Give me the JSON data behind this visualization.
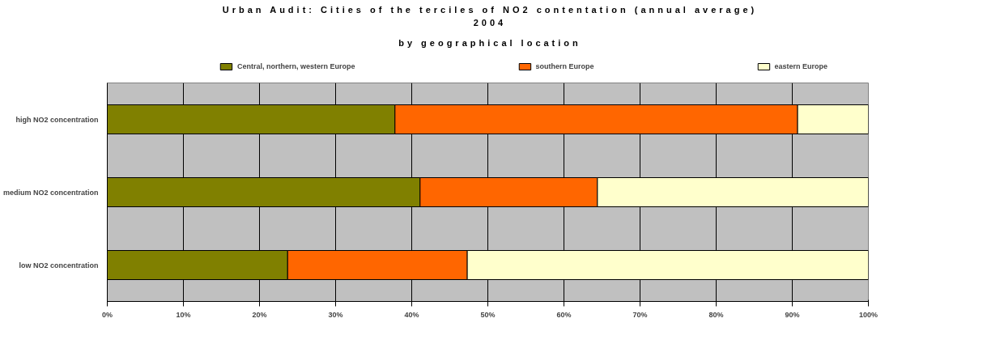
{
  "chart_data": {
    "type": "bar",
    "orientation": "horizontal",
    "stacked": true,
    "title": "Urban Audit: Cities of the terciles of NO2 contentation (annual average)\n2004",
    "subtitle": "by geographical location",
    "categories": [
      "high NO2 concentration",
      "medium NO2 concentration",
      "low NO2 concentration"
    ],
    "series": [
      {
        "name": "Central, northern, western Europe",
        "color": "#808000",
        "values": [
          37.8,
          41.1,
          23.7
        ]
      },
      {
        "name": "southern Europe",
        "color": "#ff6600",
        "values": [
          52.9,
          23.3,
          23.6
        ]
      },
      {
        "name": "eastern Europe",
        "color": "#ffffcc",
        "values": [
          9.3,
          35.6,
          52.7
        ]
      }
    ],
    "xlim": [
      0,
      100
    ],
    "xticks": [
      {
        "value": 0,
        "label": "0%"
      },
      {
        "value": 10,
        "label": "10%"
      },
      {
        "value": 20,
        "label": "20%"
      },
      {
        "value": 30,
        "label": "30%"
      },
      {
        "value": 40,
        "label": "40%"
      },
      {
        "value": 50,
        "label": "50%"
      },
      {
        "value": 60,
        "label": "60%"
      },
      {
        "value": 70,
        "label": "70%"
      },
      {
        "value": 80,
        "label": "80%"
      },
      {
        "value": 90,
        "label": "90%"
      },
      {
        "value": 100,
        "label": "100%"
      }
    ],
    "grid": "x",
    "legend": "top"
  }
}
